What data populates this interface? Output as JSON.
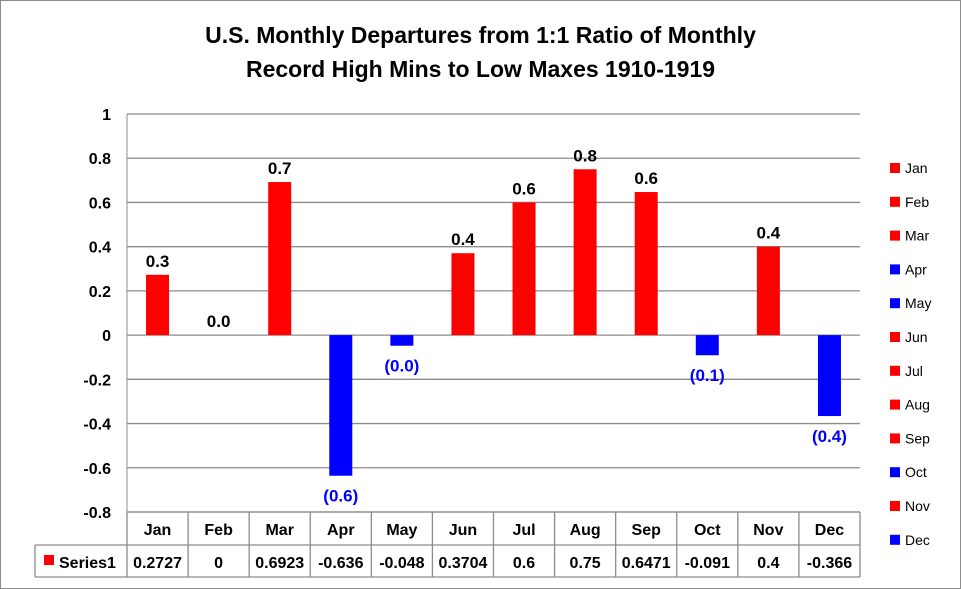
{
  "chart_data": {
    "type": "bar",
    "title_line1": "U.S. Monthly Departures from 1:1 Ratio of Monthly",
    "title_line2": "Record High Mins to Low Maxes 1910-1919",
    "categories": [
      "Jan",
      "Feb",
      "Mar",
      "Apr",
      "May",
      "Jun",
      "Jul",
      "Aug",
      "Sep",
      "Oct",
      "Nov",
      "Dec"
    ],
    "series": [
      {
        "name": "Series1",
        "values": [
          0.2727,
          0,
          0.6923,
          -0.636,
          -0.048,
          0.3704,
          0.6,
          0.75,
          0.6471,
          -0.091,
          0.4,
          -0.366
        ],
        "table_values": [
          "0.2727",
          "0",
          "0.6923",
          "-0.636",
          "-0.048",
          "0.3704",
          "0.6",
          "0.75",
          "0.6471",
          "-0.091",
          "0.4",
          "-0.366"
        ],
        "data_labels": [
          "0.3",
          "0.0",
          "0.7",
          "(0.6)",
          "(0.0)",
          "0.4",
          "0.6",
          "0.8",
          "0.6",
          "(0.1)",
          "0.4",
          "(0.4)"
        ]
      }
    ],
    "ylim": [
      -0.8,
      1
    ],
    "yticks": [
      "1",
      "0.8",
      "0.6",
      "0.4",
      "0.2",
      "0",
      "-0.2",
      "-0.4",
      "-0.6",
      "-0.8"
    ],
    "grid": true,
    "legend_position": "right",
    "legend_entries": [
      "Jan",
      "Feb",
      "Mar",
      "Apr",
      "May",
      "Jun",
      "Jul",
      "Aug",
      "Sep",
      "Oct",
      "Nov",
      "Dec"
    ],
    "colors": {
      "positive": "#ff0000",
      "negative": "#0000ff"
    }
  }
}
